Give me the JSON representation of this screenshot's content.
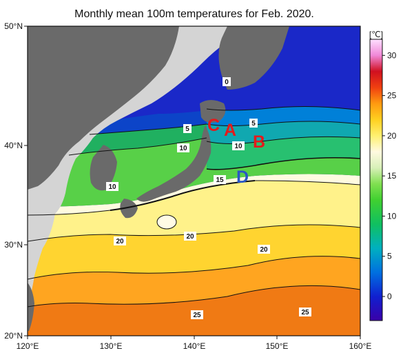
{
  "title": "Monthly mean 100m temperatures for Feb. 2020.",
  "colorbar": {
    "unit": "[℃]",
    "ticks": [
      "30",
      "25",
      "20",
      "15",
      "10",
      "5",
      "0"
    ],
    "range": [
      -3,
      32
    ],
    "stops": [
      {
        "v": -3,
        "c": "#3a00a8"
      },
      {
        "v": 0,
        "c": "#1020d0"
      },
      {
        "v": 3,
        "c": "#0070e0"
      },
      {
        "v": 6,
        "c": "#00b0c0"
      },
      {
        "v": 9,
        "c": "#10c060"
      },
      {
        "v": 12,
        "c": "#40d030"
      },
      {
        "v": 14,
        "c": "#80e050"
      },
      {
        "v": 16,
        "c": "#d8f0b8"
      },
      {
        "v": 18,
        "c": "#fffae0"
      },
      {
        "v": 20,
        "c": "#fff070"
      },
      {
        "v": 22,
        "c": "#ffd020"
      },
      {
        "v": 24,
        "c": "#ff9a10"
      },
      {
        "v": 26,
        "c": "#f04010"
      },
      {
        "v": 28,
        "c": "#d01020"
      },
      {
        "v": 30,
        "c": "#f088d8"
      },
      {
        "v": 32,
        "c": "#ffe0ff"
      }
    ]
  },
  "axes": {
    "x_ticks": [
      "120°E",
      "130°E",
      "140°E",
      "150°E",
      "160°E"
    ],
    "y_ticks": [
      "50°N",
      "40°N",
      "30°N",
      "20°N"
    ]
  },
  "contour_labels": {
    "l0": "0",
    "l5a": "5",
    "l5b": "5",
    "l10a": "10",
    "l10b": "10",
    "l10c": "10",
    "l15": "15",
    "l20a": "20",
    "l20b": "20",
    "l20c": "20",
    "l25a": "25",
    "l25b": "25"
  },
  "points": {
    "A": {
      "label": "A",
      "color": "#e41a1c"
    },
    "B": {
      "label": "B",
      "color": "#e41a1c"
    },
    "C": {
      "label": "C",
      "color": "#e41a1c"
    },
    "D": {
      "label": "D",
      "color": "#2a56c6"
    }
  },
  "colors": {
    "land": "#6a6a6a",
    "land_outside": "#d4d4d4"
  }
}
